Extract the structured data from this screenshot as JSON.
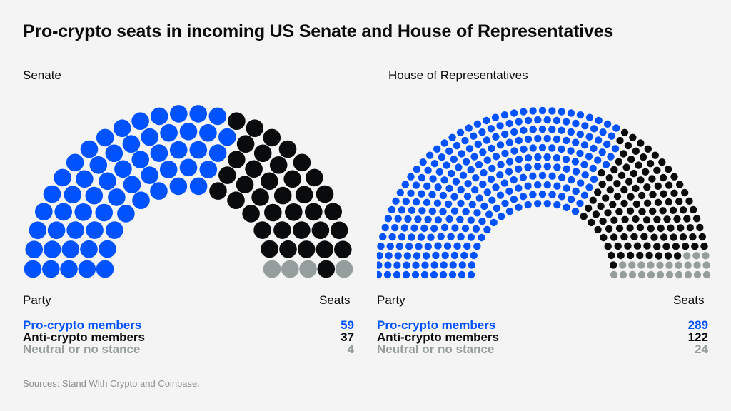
{
  "title": "Pro-crypto seats in incoming US Senate and House of Representatives",
  "colors": {
    "pro": "#0052ff",
    "anti": "#0a0b0d",
    "neutral": "#959d9d"
  },
  "legend_headers": {
    "party": "Party",
    "seats": "Seats"
  },
  "source": "Sources: Stand With Crypto and Coinbase.",
  "chart_data": [
    {
      "type": "parliament",
      "title": "Senate",
      "total": 100,
      "rows": 5,
      "series": [
        {
          "name": "Pro-crypto members",
          "value": 59,
          "color": "#0052ff"
        },
        {
          "name": "Anti-crypto members",
          "value": 37,
          "color": "#0a0b0d"
        },
        {
          "name": "Neutral or no stance",
          "value": 4,
          "color": "#959d9d"
        }
      ]
    },
    {
      "type": "parliament",
      "title": "House of Representatives",
      "total": 435,
      "rows": 11,
      "series": [
        {
          "name": "Pro-crypto members",
          "value": 289,
          "color": "#0052ff"
        },
        {
          "name": "Anti-crypto members",
          "value": 122,
          "color": "#0a0b0d"
        },
        {
          "name": "Neutral or no stance",
          "value": 24,
          "color": "#959d9d"
        }
      ]
    }
  ]
}
